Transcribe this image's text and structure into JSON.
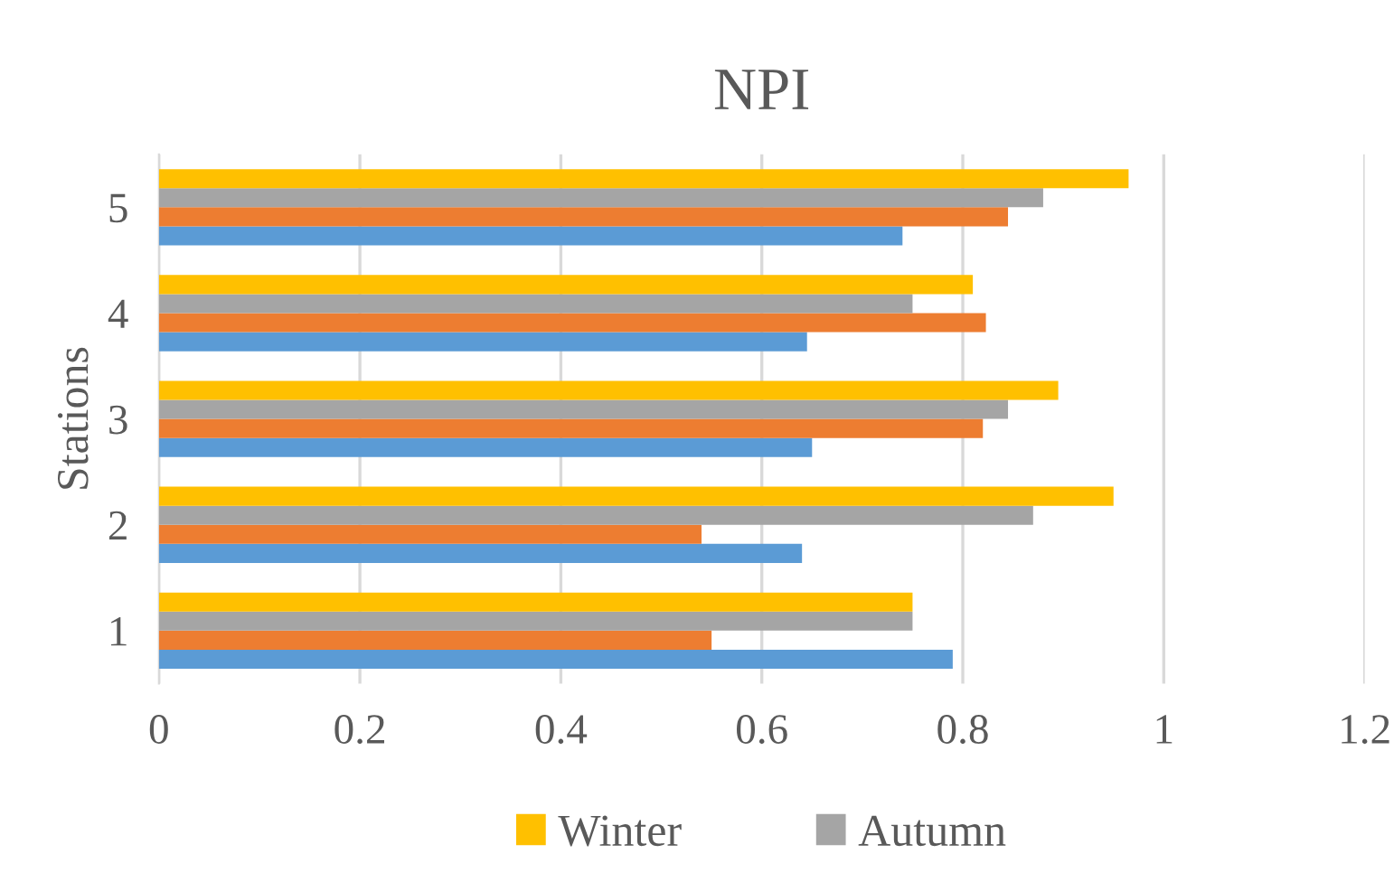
{
  "chart_data": {
    "type": "bar",
    "orientation": "horizontal",
    "title": "NPI",
    "ylabel": "Stations",
    "categories": [
      "5",
      "4",
      "3",
      "2",
      "1"
    ],
    "series": [
      {
        "color": "#5b9bd5",
        "values": [
          0.74,
          0.645,
          0.65,
          0.64,
          0.79
        ]
      },
      {
        "color": "#ed7d31",
        "values": [
          0.845,
          0.823,
          0.82,
          0.54,
          0.55
        ]
      },
      {
        "name": "Autumn",
        "color": "#a5a5a5",
        "values": [
          0.88,
          0.75,
          0.845,
          0.87,
          0.75
        ]
      },
      {
        "name": "Winter",
        "color": "#ffc000",
        "values": [
          0.965,
          0.81,
          0.895,
          0.95,
          0.75
        ]
      }
    ],
    "xlim": [
      0,
      1.2
    ],
    "xticks": [
      0,
      0.2,
      0.4,
      0.6,
      0.8,
      1,
      1.2
    ],
    "grid": "x",
    "legend": "bottom"
  }
}
